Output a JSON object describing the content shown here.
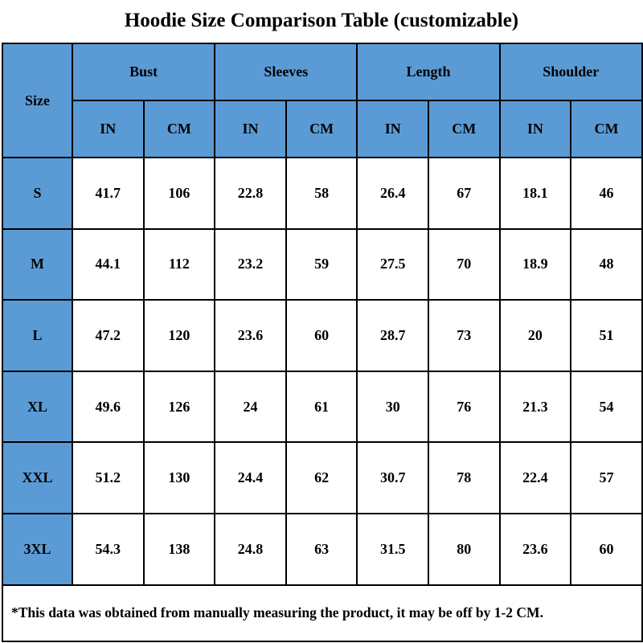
{
  "title": "Hoodie Size Comparison Table (customizable)",
  "colors": {
    "header_bg": "#5b9bd5",
    "cell_bg": "#ffffff",
    "border": "#000000"
  },
  "table": {
    "size_header": "Size",
    "groups": [
      "Bust",
      "Sleeves",
      "Length",
      "Shoulder"
    ],
    "units": [
      "IN",
      "CM",
      "IN",
      "CM",
      "IN",
      "CM",
      "IN",
      "CM"
    ],
    "rows": [
      {
        "size": "S",
        "values": [
          "41.7",
          "106",
          "22.8",
          "58",
          "26.4",
          "67",
          "18.1",
          "46"
        ]
      },
      {
        "size": "M",
        "values": [
          "44.1",
          "112",
          "23.2",
          "59",
          "27.5",
          "70",
          "18.9",
          "48"
        ]
      },
      {
        "size": "L",
        "values": [
          "47.2",
          "120",
          "23.6",
          "60",
          "28.7",
          "73",
          "20",
          "51"
        ]
      },
      {
        "size": "XL",
        "values": [
          "49.6",
          "126",
          "24",
          "61",
          "30",
          "76",
          "21.3",
          "54"
        ]
      },
      {
        "size": "XXL",
        "values": [
          "51.2",
          "130",
          "24.4",
          "62",
          "30.7",
          "78",
          "22.4",
          "57"
        ]
      },
      {
        "size": "3XL",
        "values": [
          "54.3",
          "138",
          "24.8",
          "63",
          "31.5",
          "80",
          "23.6",
          "60"
        ]
      }
    ],
    "footnote": "*This data was obtained from manually measuring the product, it may be off by 1-2 CM."
  }
}
